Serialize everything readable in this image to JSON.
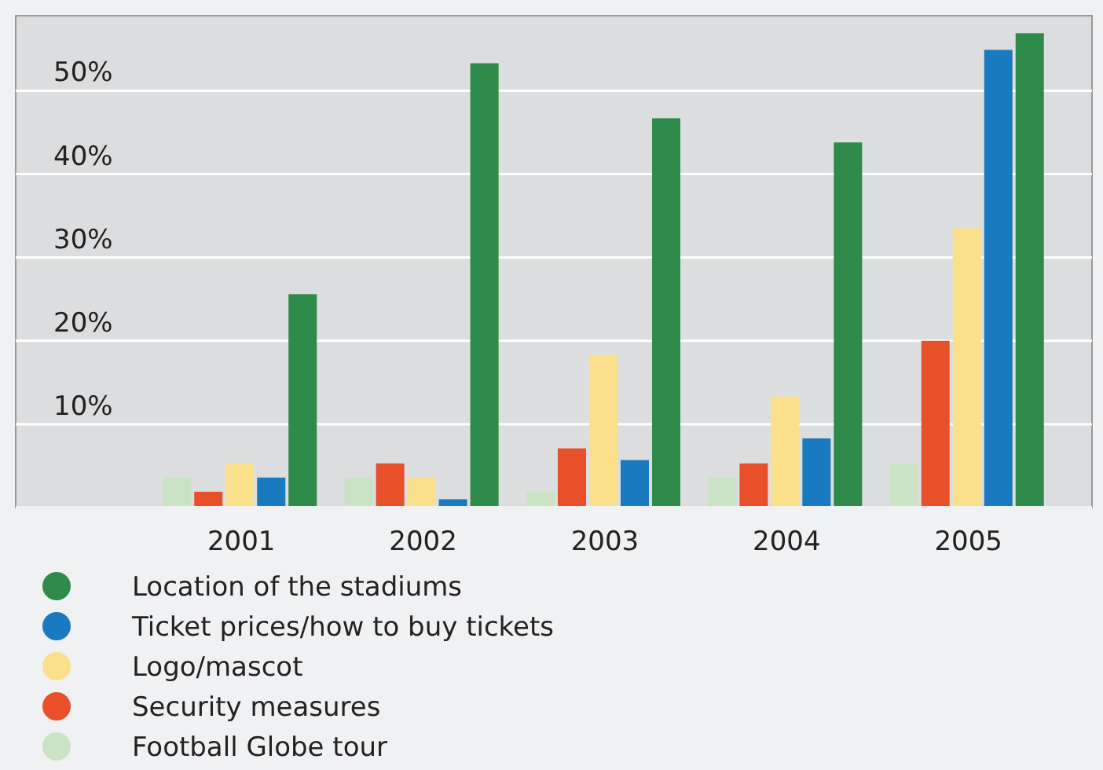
{
  "chart_data": {
    "type": "bar",
    "categories": [
      "2001",
      "2002",
      "2003",
      "2004",
      "2005"
    ],
    "series": [
      {
        "name": "Football Globe tour",
        "color": "#c9e3c4",
        "values": [
          3.6,
          3.6,
          1.9,
          3.6,
          5.3
        ]
      },
      {
        "name": "Security measures",
        "color": "#e8502a",
        "values": [
          1.9,
          5.3,
          7.1,
          5.3,
          20.0
        ]
      },
      {
        "name": "Logo/mascot",
        "color": "#fbe08c",
        "values": [
          5.3,
          3.6,
          18.3,
          13.3,
          33.5
        ]
      },
      {
        "name": "Ticket prices/how to buy tickets",
        "color": "#1a7abf",
        "values": [
          3.6,
          1.0,
          5.7,
          8.3,
          54.9
        ]
      },
      {
        "name": "Location of the stadiums",
        "color": "#2e8b4a",
        "values": [
          25.6,
          53.3,
          46.7,
          43.8,
          56.9
        ]
      }
    ],
    "ylim": [
      0,
      59
    ],
    "yticks": [
      {
        "value": 10,
        "label": "10%"
      },
      {
        "value": 20,
        "label": "20%"
      },
      {
        "value": 30,
        "label": "30%"
      },
      {
        "value": 40,
        "label": "40%"
      },
      {
        "value": 50,
        "label": "50%"
      }
    ],
    "grid": "y",
    "legend": "bottom"
  }
}
